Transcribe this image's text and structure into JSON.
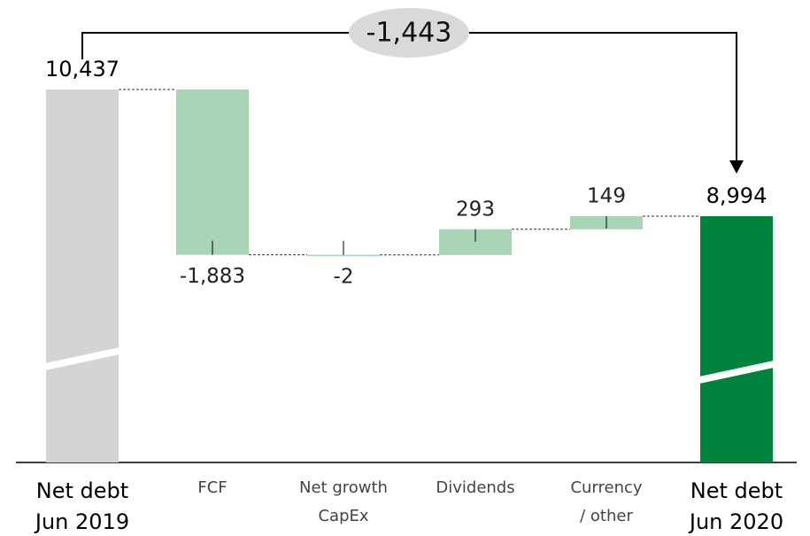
{
  "chart_data": {
    "type": "waterfall",
    "categories": [
      [
        "Net debt",
        "Jun 2019"
      ],
      [
        "FCF"
      ],
      [
        "Net growth",
        "CapEx"
      ],
      [
        "Dividends"
      ],
      [
        "Currency",
        "/ other"
      ],
      [
        "Net debt",
        "Jun 2020"
      ]
    ],
    "values": [
      10437,
      -1883,
      -2,
      293,
      149,
      8994
    ],
    "value_labels": [
      "10,437",
      "-1,883",
      "-2",
      "293",
      "149",
      "8,994"
    ],
    "totals": [
      true,
      false,
      false,
      false,
      false,
      true
    ],
    "colors": [
      "#d4d4d4",
      "#a8d5b5",
      "#a8d5b5",
      "#a8d5b5",
      "#a8d5b5",
      "#00843d"
    ],
    "annotation": "-1,443"
  }
}
